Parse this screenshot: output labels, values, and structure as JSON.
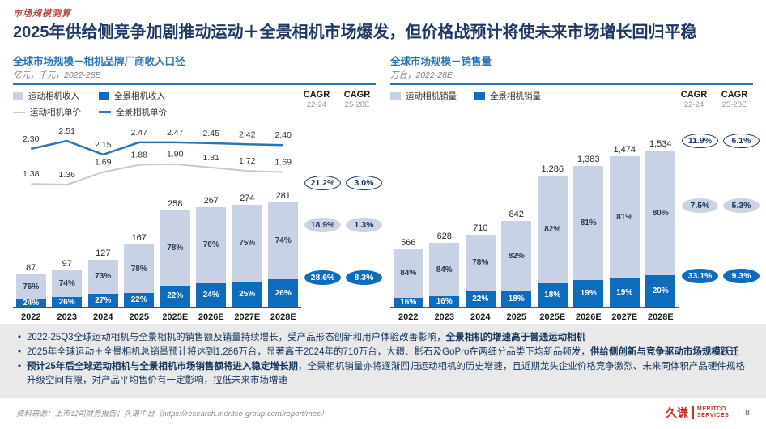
{
  "page": {
    "eyebrow": "市场规模测算",
    "title": "2025年供给侧竞争加剧推动运动＋全景相机市场爆发，但价格战预计将使未来市场增长回归平稳"
  },
  "colors": {
    "navy": "#1f3864",
    "chart_blue": "#2e74b5",
    "eyebrow_red": "#b5443c",
    "bar_light": "#c9d2e4",
    "bar_dark": "#0e6cbd",
    "line_gray": "#c2c8d6",
    "line_blue": "#2e75b6",
    "logo_red": "#c9302c",
    "notes_bg": "#e9e9e9"
  },
  "chart_data": [
    {
      "type": "bar",
      "title": "全球市场规模－相机品牌厂商收入口径",
      "subtitle": "亿元，千元，2022-28E",
      "categories": [
        "2022",
        "2023",
        "2024",
        "2025\nQ1-3",
        "2025E",
        "2026E",
        "2027E",
        "2028E"
      ],
      "totals": [
        87,
        97,
        127,
        167,
        258,
        267,
        274,
        281
      ],
      "total_labels": [
        "87",
        "97",
        "127",
        "167",
        "258",
        "267",
        "274",
        "281"
      ],
      "ylim": [
        0,
        300
      ],
      "series": [
        {
          "name": "运动相机收入",
          "swatch": "bar-light",
          "shares_pct": [
            76,
            74,
            73,
            78,
            78,
            76,
            75,
            74
          ]
        },
        {
          "name": "全景相机收入",
          "swatch": "bar-dark",
          "shares_pct": [
            24,
            26,
            27,
            22,
            22,
            24,
            25,
            26
          ]
        }
      ],
      "lines": [
        {
          "name": "运动相机单价",
          "swatch": "line-gray",
          "values": [
            1.38,
            1.36,
            1.69,
            1.88,
            1.9,
            1.81,
            1.72,
            1.69
          ],
          "labels": [
            "1.38",
            "1.36",
            "1.69",
            "1.88",
            "1.90",
            "1.81",
            "1.72",
            "1.69"
          ]
        },
        {
          "name": "全景相机单价",
          "swatch": "line-blue",
          "values": [
            2.3,
            2.51,
            2.15,
            2.47,
            2.47,
            2.45,
            2.42,
            2.4
          ],
          "labels": [
            "2.30",
            "2.51",
            "2.15",
            "2.47",
            "2.47",
            "2.45",
            "2.42",
            "2.40"
          ]
        }
      ],
      "cagr_header": {
        "col1": "CAGR",
        "col1_sub": "22-24",
        "col2": "CAGR",
        "col2_sub": "25-28E"
      },
      "cagr_rows": [
        {
          "style": "outline",
          "v1": "21.2%",
          "v2": "3.0%"
        },
        {
          "style": "light",
          "v1": "18.9%",
          "v2": "1.3%"
        },
        {
          "style": "dark",
          "v1": "28.6%",
          "v2": "8.3%"
        }
      ]
    },
    {
      "type": "bar",
      "title": "全球市场规模－销售量",
      "subtitle": "万台，2022-28E",
      "categories": [
        "2022",
        "2023",
        "2024",
        "2025\nQ1-3",
        "2025E",
        "2026E",
        "2027E",
        "2028E"
      ],
      "totals": [
        566,
        628,
        710,
        842,
        1286,
        1383,
        1474,
        1534
      ],
      "total_labels": [
        "566",
        "628",
        "710",
        "842",
        "1,286",
        "1,383",
        "1,474",
        "1,534"
      ],
      "ylim": [
        0,
        1700
      ],
      "series": [
        {
          "name": "运动相机销量",
          "swatch": "bar-light",
          "shares_pct": [
            84,
            84,
            78,
            82,
            82,
            81,
            81,
            80
          ]
        },
        {
          "name": "全景相机销量",
          "swatch": "bar-dark",
          "shares_pct": [
            16,
            16,
            22,
            18,
            18,
            19,
            19,
            20
          ]
        }
      ],
      "cagr_header": {
        "col1": "CAGR",
        "col1_sub": "22-24",
        "col2": "CAGR",
        "col2_sub": "25-28E"
      },
      "cagr_rows": [
        {
          "style": "outline",
          "v1": "11.9%",
          "v2": "6.1%"
        },
        {
          "style": "light",
          "v1": "7.5%",
          "v2": "5.3%"
        },
        {
          "style": "dark",
          "v1": "33.1%",
          "v2": "9.3%"
        }
      ]
    }
  ],
  "bullets": [
    {
      "parts": [
        {
          "t": "2022-25Q3全球运动相机与全景相机的销售额及销量持续增长，受产品形态创新和用户体验改善影响，",
          "b": false
        },
        {
          "t": "全景相机的增速高于普通运动相机",
          "b": true
        }
      ]
    },
    {
      "parts": [
        {
          "t": "2025年全球运动＋全景相机总销量预计将达到1,286万台，显著高于2024年的710万台，大疆、影石及GoPro在两细分品类下均新品频发，",
          "b": false
        },
        {
          "t": "供给侧创新与竞争驱动市场规模跃迁",
          "b": true
        }
      ]
    },
    {
      "parts": [
        {
          "t": "预计25年后全球运动相机与全景相机市场销售额将进入稳定增长期",
          "b": true
        },
        {
          "t": "，全景相机销量亦将逐渐回归运动相机的历史增速，且近期龙头企业价格竞争激烈、未来同体积产品硬件规格升级空间有限，对产品平均售价有一定影响，拉低未来市场增速",
          "b": false
        }
      ]
    }
  ],
  "footer": {
    "source": "资料来源：上市公司财务报告；久谦中台（https://research.meritco-group.com/report/mec）",
    "logo_cn": "久谦",
    "logo_en": "MERITCO\nSERVICES",
    "divider": "|",
    "page_number": "8"
  }
}
